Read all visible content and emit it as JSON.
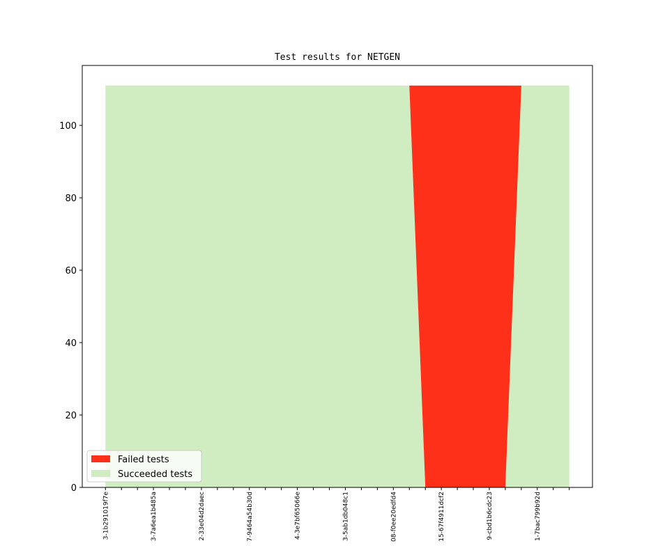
{
  "chart_data": {
    "type": "stackedarea",
    "title": "Test results for NETGEN",
    "categories": [
      "3-1b291019f7e",
      null,
      null,
      "3-7a6ea1b485a",
      null,
      null,
      "2-33e04d2daec",
      null,
      null,
      "7-9464a54b30d",
      null,
      null,
      "4-3e7bf65066e",
      null,
      null,
      "3-5ab1db048c1",
      null,
      null,
      "08-f0ee20edfd4",
      null,
      null,
      "15-67f4911dcf2",
      null,
      null,
      "9-cbd1b6cdc23",
      null,
      null,
      "1-7bac799b92d",
      null,
      null
    ],
    "series": [
      {
        "name": "Failed tests",
        "color": "#ff3019",
        "values": [
          0,
          0,
          0,
          0,
          0,
          0,
          0,
          0,
          0,
          0,
          0,
          0,
          0,
          0,
          0,
          0,
          0,
          0,
          0,
          0,
          111,
          111,
          111,
          111,
          111,
          111,
          0,
          0,
          0,
          0
        ]
      },
      {
        "name": "Succeeded tests",
        "color": "#cfedc0",
        "values": [
          111,
          111,
          111,
          111,
          111,
          111,
          111,
          111,
          111,
          111,
          111,
          111,
          111,
          111,
          111,
          111,
          111,
          111,
          111,
          111,
          0,
          0,
          0,
          0,
          0,
          0,
          111,
          111,
          111,
          111
        ]
      }
    ],
    "ylim": [
      0,
      116.55
    ],
    "yticks": [
      0,
      20,
      40,
      60,
      80,
      100
    ],
    "legend": "lower left"
  }
}
